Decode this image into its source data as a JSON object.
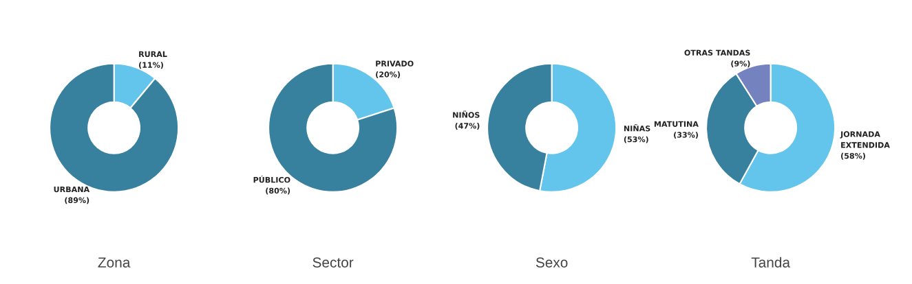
{
  "chart_data": [
    {
      "type": "donut",
      "title": "Zona",
      "categories": [
        "RURAL",
        "URBANA"
      ],
      "values": [
        11,
        89
      ],
      "value_labels": [
        "(11%)",
        "(89%)"
      ],
      "colors": [
        "#63c5ec",
        "#37809e"
      ]
    },
    {
      "type": "donut",
      "title": "Sector",
      "categories": [
        "PRIVADO",
        "PÚBLICO"
      ],
      "values": [
        20,
        80
      ],
      "value_labels": [
        "(20%)",
        "(80%)"
      ],
      "colors": [
        "#63c5ec",
        "#37809e"
      ]
    },
    {
      "type": "donut",
      "title": "Sexo",
      "categories": [
        "NIÑAS",
        "NIÑOS"
      ],
      "values": [
        53,
        47
      ],
      "value_labels": [
        "(53%)",
        "(47%)"
      ],
      "colors": [
        "#63c5ec",
        "#37809e"
      ]
    },
    {
      "type": "donut",
      "title": "Tanda",
      "categories": [
        "JORNADA EXTENDIDA",
        "MATUTINA",
        "OTRAS TANDAS"
      ],
      "values": [
        58,
        33,
        9
      ],
      "value_labels": [
        "(58%)",
        "(33%)",
        "(9%)"
      ],
      "colors": [
        "#63c5ec",
        "#37809e",
        "#7483c0"
      ]
    }
  ]
}
